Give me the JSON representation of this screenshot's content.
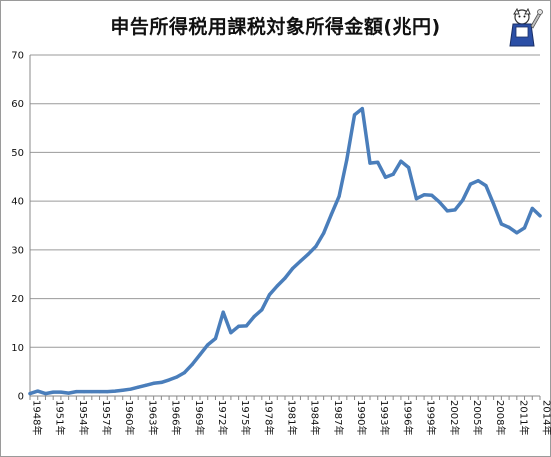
{
  "chart_data": {
    "type": "line",
    "title": "申告所得税用課税対象所得金額(兆円)",
    "xlabel": "",
    "ylabel": "",
    "ylim": [
      0,
      70
    ],
    "yticks": [
      0,
      10,
      20,
      30,
      40,
      50,
      60,
      70
    ],
    "xticks": [
      "1948年",
      "1951年",
      "1954年",
      "1957年",
      "1960年",
      "1963年",
      "1966年",
      "1969年",
      "1972年",
      "1975年",
      "1978年",
      "1981年",
      "1984年",
      "1987年",
      "1990年",
      "1993年",
      "1996年",
      "1999年",
      "2002年",
      "2005年",
      "2008年",
      "2011年",
      "2014年"
    ],
    "grid": true,
    "legend": "none",
    "color": "#4a7ebb",
    "series": [
      {
        "x": [
          1948,
          1949,
          1950,
          1951,
          1952,
          1953,
          1954,
          1955,
          1956,
          1957,
          1958,
          1959,
          1960,
          1961,
          1962,
          1963,
          1964,
          1965,
          1966,
          1967,
          1968,
          1969,
          1970,
          1971,
          1972,
          1973,
          1974,
          1975,
          1976,
          1977,
          1978,
          1979,
          1980,
          1981,
          1982,
          1983,
          1984,
          1985,
          1986,
          1987,
          1988,
          1989,
          1990,
          1991,
          1992,
          1993,
          1994,
          1995,
          1996,
          1997,
          1998,
          1999,
          2000,
          2001,
          2002,
          2003,
          2004,
          2005,
          2006,
          2007,
          2008,
          2009,
          2010,
          2011,
          2012,
          2013,
          2014
        ],
        "values": [
          0.5,
          1.0,
          0.5,
          0.8,
          0.8,
          0.6,
          0.9,
          0.9,
          0.9,
          0.9,
          0.9,
          1.0,
          1.2,
          1.4,
          1.8,
          2.2,
          2.6,
          2.8,
          3.3,
          3.9,
          4.8,
          6.5,
          8.5,
          10.5,
          11.8,
          17.2,
          13.0,
          14.3,
          14.4,
          16.3,
          17.7,
          20.8,
          22.6,
          24.2,
          26.2,
          27.7,
          29.1,
          30.7,
          33.4,
          37.3,
          41.0,
          48.5,
          57.7,
          59.0,
          47.8,
          48.0,
          44.9,
          45.5,
          48.2,
          46.9,
          40.5,
          41.3,
          41.2,
          39.8,
          38.0,
          38.2,
          40.2,
          43.5,
          44.2,
          43.2,
          39.4,
          35.3,
          34.6,
          33.5,
          34.5,
          38.5,
          37.0
        ]
      }
    ]
  }
}
